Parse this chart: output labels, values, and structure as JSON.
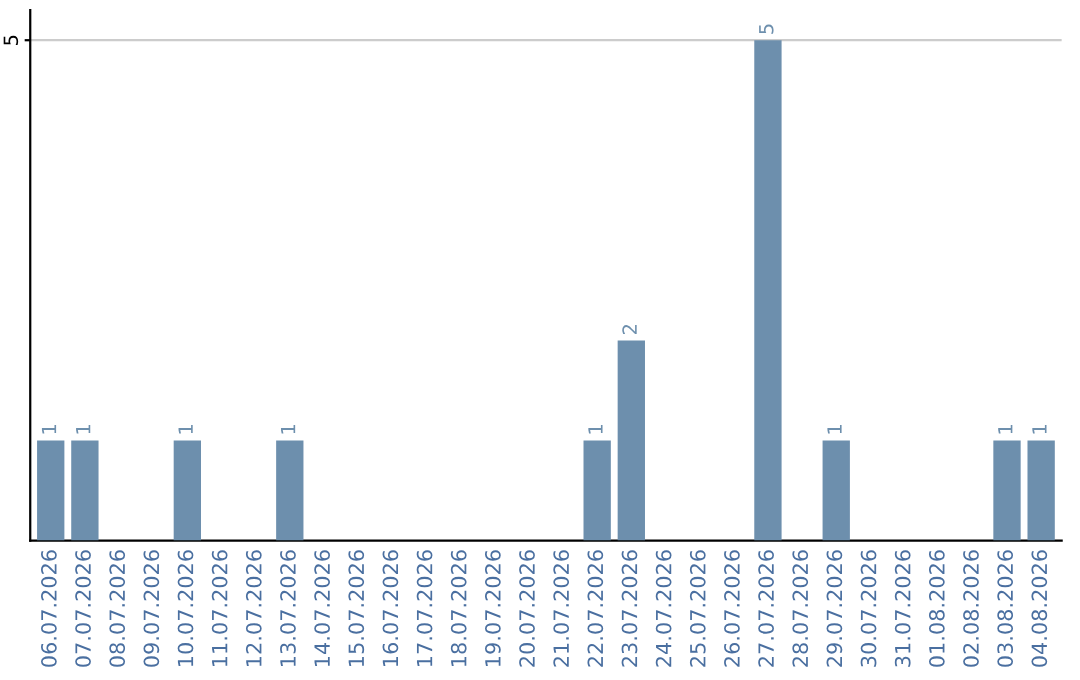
{
  "chart_data": {
    "type": "bar",
    "categories": [
      "06.07.2026",
      "07.07.2026",
      "08.07.2026",
      "09.07.2026",
      "10.07.2026",
      "11.07.2026",
      "12.07.2026",
      "13.07.2026",
      "14.07.2026",
      "15.07.2026",
      "16.07.2026",
      "17.07.2026",
      "18.07.2026",
      "19.07.2026",
      "20.07.2026",
      "21.07.2026",
      "22.07.2026",
      "23.07.2026",
      "24.07.2026",
      "25.07.2026",
      "26.07.2026",
      "27.07.2026",
      "28.07.2026",
      "29.07.2026",
      "30.07.2026",
      "31.07.2026",
      "01.08.2026",
      "02.08.2026",
      "03.08.2026",
      "04.08.2026"
    ],
    "values": [
      1,
      1,
      0,
      0,
      1,
      0,
      0,
      1,
      0,
      0,
      0,
      0,
      0,
      0,
      0,
      0,
      1,
      2,
      0,
      0,
      0,
      5,
      0,
      1,
      0,
      0,
      0,
      0,
      1,
      1
    ],
    "value_labels": [
      "1",
      "1",
      null,
      null,
      "1",
      null,
      null,
      "1",
      null,
      null,
      null,
      null,
      null,
      null,
      null,
      null,
      "1",
      "2",
      null,
      null,
      null,
      "5",
      null,
      "1",
      null,
      null,
      null,
      null,
      "1",
      "1"
    ],
    "color": "#6d8fad",
    "ylim": [
      0,
      5.3
    ],
    "yticks": [
      5
    ],
    "grid": "y",
    "legend": false
  }
}
